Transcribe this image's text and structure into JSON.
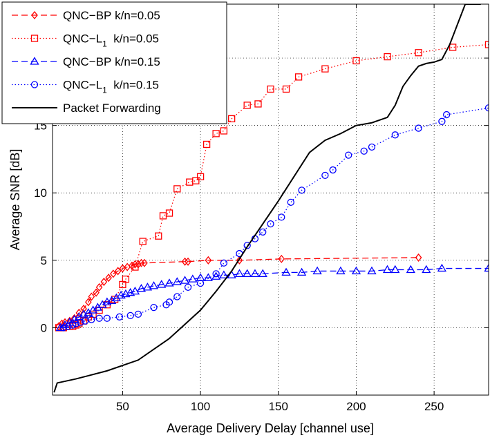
{
  "chart_data": {
    "type": "line",
    "title": "",
    "xlabel": "Average Delivery Delay [channel use]",
    "ylabel": "Average SNR [dB]",
    "xlim": [
      5,
      285
    ],
    "ylim": [
      -5,
      24
    ],
    "xticks": [
      50,
      100,
      150,
      200,
      250
    ],
    "yticks": [
      0,
      5,
      10,
      15,
      20
    ],
    "grid": true,
    "legend_position": "top-left",
    "series": [
      {
        "name": "QNC−BP k/n=0.05",
        "name_main": "QNC−BP",
        "name_sub": "",
        "name_tail": " k/n=0.05",
        "color": "#ff0000",
        "line_style": "dashed",
        "marker": "diamond",
        "x": [
          9,
          11,
          13,
          16,
          19,
          22,
          25,
          28,
          30,
          33,
          35,
          38,
          41,
          44,
          47,
          50,
          53,
          56,
          58,
          60,
          62,
          64,
          90,
          92,
          105,
          125,
          152,
          240
        ],
        "y": [
          0.1,
          0.3,
          0.4,
          0.5,
          0.7,
          1.1,
          1.4,
          1.9,
          2.3,
          2.6,
          3.0,
          3.4,
          3.7,
          4.0,
          4.2,
          4.4,
          4.5,
          4.6,
          4.7,
          4.7,
          4.8,
          4.8,
          4.9,
          4.9,
          5.0,
          5.0,
          5.1,
          5.2
        ]
      },
      {
        "name": "QNC−L1 k/n=0.05",
        "name_main": "QNC−L",
        "name_sub": "1",
        "name_tail": "  k/n=0.05",
        "color": "#ff0000",
        "line_style": "dotted",
        "marker": "square",
        "x": [
          9,
          12,
          14,
          16,
          18,
          20,
          22,
          25,
          28,
          31,
          35,
          40,
          45,
          50,
          52,
          58,
          63,
          73,
          76,
          80,
          85,
          93,
          97,
          100,
          104,
          110,
          115,
          120,
          130,
          137,
          145,
          155,
          163,
          180,
          200,
          220,
          240,
          262,
          285
        ],
        "y": [
          0.0,
          0.0,
          0.1,
          0.1,
          0.1,
          0.2,
          0.3,
          0.5,
          0.8,
          1.0,
          1.3,
          1.7,
          2.1,
          3.2,
          3.6,
          4.5,
          6.4,
          6.8,
          8.3,
          8.5,
          10.3,
          10.8,
          10.9,
          11.2,
          13.6,
          14.4,
          14.6,
          15.5,
          16.5,
          16.6,
          17.7,
          17.7,
          18.6,
          19.2,
          19.8,
          20.1,
          20.4,
          20.8,
          21.0
        ]
      },
      {
        "name": "QNC−BP k/n=0.15",
        "name_main": "QNC−BP",
        "name_sub": "",
        "name_tail": " k/n=0.15",
        "color": "#0000ff",
        "line_style": "dashed",
        "marker": "triangle",
        "x": [
          10,
          13,
          16,
          19,
          22,
          25,
          28,
          31,
          34,
          37,
          40,
          43,
          46,
          49,
          52,
          55,
          58,
          62,
          66,
          70,
          75,
          80,
          85,
          90,
          95,
          100,
          105,
          110,
          115,
          120,
          125,
          130,
          135,
          140,
          155,
          165,
          175,
          190,
          200,
          210,
          220,
          225,
          235,
          245,
          255,
          285
        ],
        "y": [
          0.0,
          0.2,
          0.4,
          0.6,
          0.8,
          1.0,
          1.1,
          1.3,
          1.5,
          1.7,
          1.9,
          2.0,
          2.2,
          2.4,
          2.5,
          2.6,
          2.7,
          2.9,
          3.0,
          3.1,
          3.2,
          3.3,
          3.4,
          3.5,
          3.6,
          3.7,
          3.7,
          3.8,
          3.9,
          3.9,
          4.0,
          4.0,
          4.0,
          4.0,
          4.1,
          4.1,
          4.2,
          4.2,
          4.2,
          4.2,
          4.3,
          4.3,
          4.3,
          4.3,
          4.4,
          4.4
        ]
      },
      {
        "name": "QNC−L1 k/n=0.15",
        "name_main": "QNC−L",
        "name_sub": "1",
        "name_tail": "  k/n=0.15",
        "color": "#0000ff",
        "line_style": "dotted",
        "marker": "circle",
        "x": [
          12,
          15,
          18,
          20,
          23,
          26,
          30,
          35,
          40,
          48,
          55,
          60,
          70,
          78,
          80,
          85,
          92,
          100,
          110,
          115,
          125,
          130,
          135,
          140,
          145,
          152,
          158,
          165,
          180,
          185,
          195,
          205,
          210,
          225,
          240,
          255,
          258,
          285
        ],
        "y": [
          0.0,
          0.1,
          0.2,
          0.3,
          0.4,
          0.5,
          0.6,
          0.7,
          0.7,
          0.8,
          0.9,
          1.0,
          1.5,
          1.7,
          1.9,
          2.3,
          3.0,
          3.3,
          4.0,
          4.8,
          5.5,
          6.1,
          6.6,
          7.1,
          7.7,
          8.2,
          9.3,
          10.2,
          11.3,
          11.7,
          12.8,
          13.1,
          13.4,
          14.3,
          14.8,
          15.3,
          15.8,
          16.3
        ]
      },
      {
        "name": "Packet Forwarding",
        "name_main": "Packet Forwarding",
        "name_sub": "",
        "name_tail": "",
        "color": "#000000",
        "line_style": "solid",
        "marker": "none",
        "x": [
          6,
          8,
          20,
          40,
          60,
          80,
          100,
          110,
          120,
          130,
          140,
          150,
          160,
          170,
          180,
          190,
          200,
          210,
          215,
          220,
          225,
          230,
          235,
          240,
          245,
          250,
          255,
          260,
          265,
          270,
          280
        ],
        "y": [
          -4.8,
          -4.1,
          -3.8,
          -3.2,
          -2.4,
          -0.8,
          1.3,
          2.7,
          4.2,
          6.0,
          7.7,
          9.4,
          11.2,
          13.0,
          13.9,
          14.4,
          15.0,
          15.2,
          15.4,
          15.6,
          16.5,
          17.9,
          18.7,
          19.4,
          19.6,
          19.7,
          19.9,
          21.0,
          22.5,
          24.0,
          24.0
        ]
      }
    ]
  }
}
